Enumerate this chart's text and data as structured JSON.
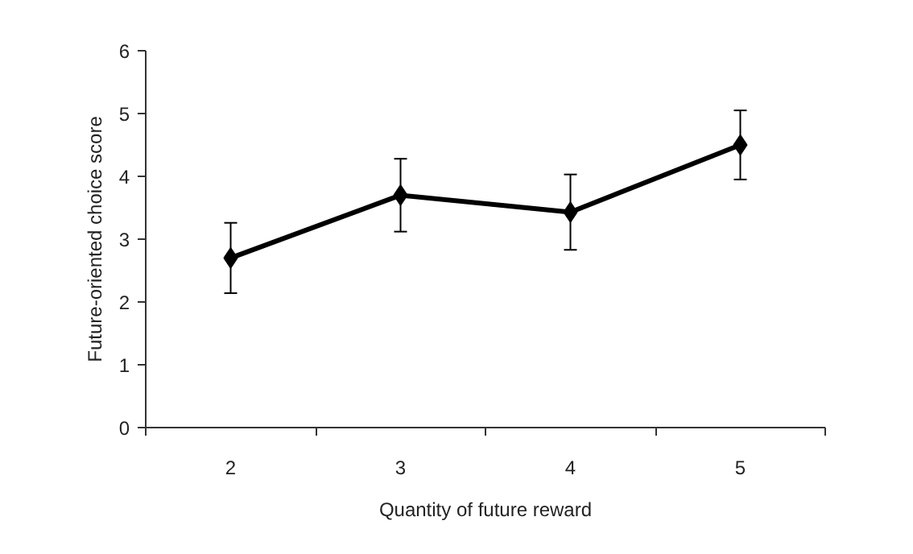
{
  "chart_data": {
    "type": "line",
    "xlabel": "Quantity of future reward",
    "ylabel": "Future-oriented choice score",
    "categories": [
      "2",
      "3",
      "4",
      "5"
    ],
    "series": [
      {
        "color": "#000000",
        "values": [
          2.7,
          3.7,
          3.43,
          4.5
        ],
        "errors": [
          0.56,
          0.58,
          0.6,
          0.55
        ]
      }
    ],
    "ylim": [
      0,
      6
    ],
    "yticks": [
      0,
      1,
      2,
      3,
      4,
      5,
      6
    ],
    "grid": false,
    "marker": "diamond",
    "line_style": "solid"
  }
}
